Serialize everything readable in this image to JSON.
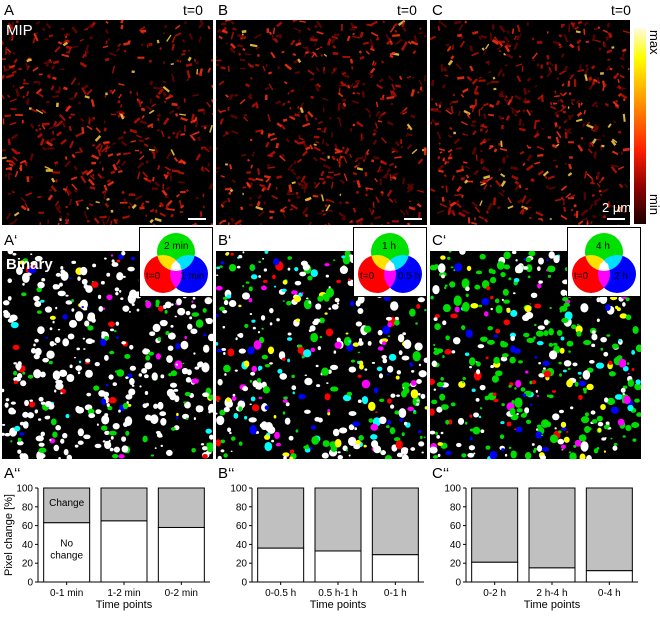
{
  "panels": {
    "row1": [
      {
        "label": "A",
        "time": "t=0"
      },
      {
        "label": "B",
        "time": "t=0"
      },
      {
        "label": "C",
        "time": "t=0"
      }
    ],
    "row1_title": "MIP",
    "scalebar_label": "2 µm",
    "colorbar": {
      "max": "max",
      "min": "min"
    },
    "row2": [
      {
        "label": "A‘",
        "venn": {
          "top": "2 min",
          "left": "t=0",
          "right": "1 min"
        }
      },
      {
        "label": "B‘",
        "venn": {
          "top": "1 h",
          "left": "t=0",
          "right": "0.5 h"
        }
      },
      {
        "label": "C‘",
        "venn": {
          "top": "4 h",
          "left": "t=0",
          "right": "2 h"
        }
      }
    ],
    "row2_title": "Binary",
    "row3": [
      {
        "label": "A‘‘"
      },
      {
        "label": "B‘‘"
      },
      {
        "label": "C‘‘"
      }
    ]
  },
  "colors": {
    "change": "#c0c0c0",
    "no_change": "#ffffff",
    "venn_red": "#ff0000",
    "venn_green": "#00e000",
    "venn_blue": "#0000ff"
  },
  "chart_data": [
    {
      "type": "bar",
      "stacked": true,
      "categories": [
        "0-1 min",
        "1-2 min",
        "0-2 min"
      ],
      "series": [
        {
          "name": "No change",
          "values": [
            63,
            65,
            58
          ]
        },
        {
          "name": "Change",
          "values": [
            37,
            35,
            42
          ]
        }
      ],
      "xlabel": "Time points",
      "ylabel": "Pixel change [%]",
      "ylim": [
        0,
        100
      ],
      "yticks": [
        "0",
        "20",
        "40",
        "60",
        "80",
        "100"
      ],
      "annotations": {
        "change": "Change",
        "no_change_1": "No",
        "no_change_2": "change"
      }
    },
    {
      "type": "bar",
      "stacked": true,
      "categories": [
        "0-0.5 h",
        "0.5 h-1 h",
        "0-1 h"
      ],
      "series": [
        {
          "name": "No change",
          "values": [
            36,
            33,
            29
          ]
        },
        {
          "name": "Change",
          "values": [
            64,
            67,
            71
          ]
        }
      ],
      "xlabel": "Time points",
      "ylabel": "",
      "ylim": [
        0,
        100
      ],
      "yticks": [
        "0",
        "20",
        "40",
        "60",
        "80",
        "100"
      ]
    },
    {
      "type": "bar",
      "stacked": true,
      "categories": [
        "0-2 h",
        "2 h-4 h",
        "0-4 h"
      ],
      "series": [
        {
          "name": "No change",
          "values": [
            21,
            15,
            12
          ]
        },
        {
          "name": "Change",
          "values": [
            79,
            85,
            88
          ]
        }
      ],
      "xlabel": "Time points",
      "ylabel": "",
      "ylim": [
        0,
        100
      ],
      "yticks": [
        "0",
        "20",
        "40",
        "60",
        "80",
        "100"
      ]
    }
  ]
}
